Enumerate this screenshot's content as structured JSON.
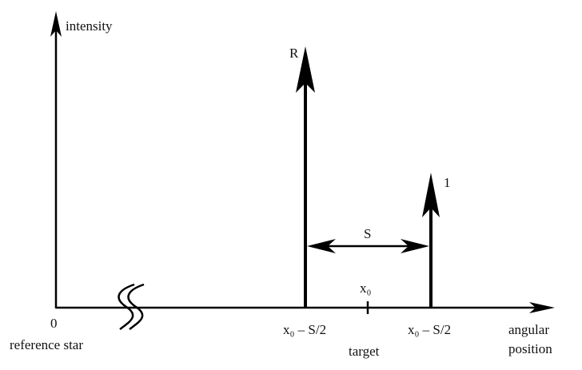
{
  "y_axis_label": "intensity",
  "x_axis_label": [
    "angular",
    "position"
  ],
  "origin": {
    "label": "0",
    "caption": "reference star"
  },
  "peaks": [
    {
      "label": "R",
      "position": "x₀ – S/2"
    },
    {
      "label": "1",
      "position": "x₀ – S/2"
    }
  ],
  "separation": "S",
  "target": {
    "label": "x₀",
    "caption": "target"
  }
}
